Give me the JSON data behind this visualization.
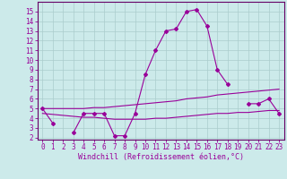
{
  "x": [
    0,
    1,
    2,
    3,
    4,
    5,
    6,
    7,
    8,
    9,
    10,
    11,
    12,
    13,
    14,
    15,
    16,
    17,
    18,
    19,
    20,
    21,
    22,
    23
  ],
  "line_main": [
    5.0,
    3.5,
    null,
    2.5,
    4.5,
    4.5,
    4.5,
    2.2,
    2.2,
    4.5,
    8.5,
    11.0,
    13.0,
    13.2,
    15.0,
    15.2,
    13.5,
    9.0,
    7.5,
    null,
    5.5,
    5.5,
    6.0,
    4.5
  ],
  "line_upper": [
    5.0,
    5.0,
    5.0,
    5.0,
    5.0,
    5.1,
    5.1,
    5.2,
    5.3,
    5.4,
    5.5,
    5.6,
    5.7,
    5.8,
    6.0,
    6.1,
    6.2,
    6.4,
    6.5,
    6.6,
    6.7,
    6.8,
    6.9,
    7.0
  ],
  "line_lower": [
    4.5,
    4.4,
    4.3,
    4.2,
    4.1,
    4.1,
    4.0,
    3.9,
    3.9,
    3.9,
    3.9,
    4.0,
    4.0,
    4.1,
    4.2,
    4.3,
    4.4,
    4.5,
    4.5,
    4.6,
    4.6,
    4.7,
    4.8,
    4.8
  ],
  "bg_color": "#cceaea",
  "grid_color": "#aacccc",
  "line_color": "#990099",
  "spine_color": "#660066",
  "ylim": [
    1.8,
    16.0
  ],
  "xlim": [
    -0.5,
    23.5
  ],
  "yticks": [
    2,
    3,
    4,
    5,
    6,
    7,
    8,
    9,
    10,
    11,
    12,
    13,
    14,
    15
  ],
  "xticks": [
    0,
    1,
    2,
    3,
    4,
    5,
    6,
    7,
    8,
    9,
    10,
    11,
    12,
    13,
    14,
    15,
    16,
    17,
    18,
    19,
    20,
    21,
    22,
    23
  ],
  "xlabel": "Windchill (Refroidissement éolien,°C)",
  "marker": "D",
  "marker_size": 2.0,
  "line_width": 0.8,
  "tick_fontsize": 5.5,
  "xlabel_fontsize": 6.0
}
